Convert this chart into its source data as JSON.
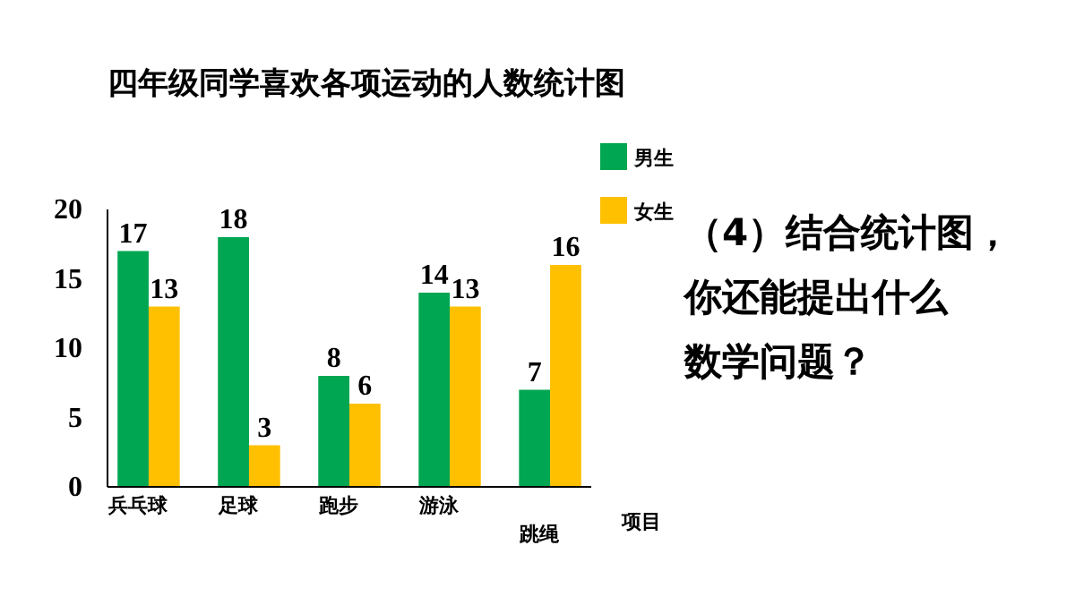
{
  "chart_data": {
    "type": "bar",
    "title": "四年级同学喜欢各项运动的人数统计图",
    "xlabel": "项目",
    "categories": [
      "兵乓球",
      "足球",
      "跑步",
      "游泳",
      "跳绳"
    ],
    "series": [
      {
        "name": "男生",
        "color": "#00a651",
        "values": [
          17,
          18,
          8,
          14,
          7
        ]
      },
      {
        "name": "女生",
        "color": "#ffc000",
        "values": [
          13,
          3,
          6,
          13,
          16
        ]
      }
    ],
    "ylim": [
      0,
      20
    ],
    "yticks": [
      0,
      5,
      10,
      15,
      20
    ],
    "data_labels": true,
    "legend": "top right",
    "grid": false,
    "annotations": [
      "（4）结合统计图，",
      "你还能提出什么",
      "数学问题？"
    ]
  }
}
